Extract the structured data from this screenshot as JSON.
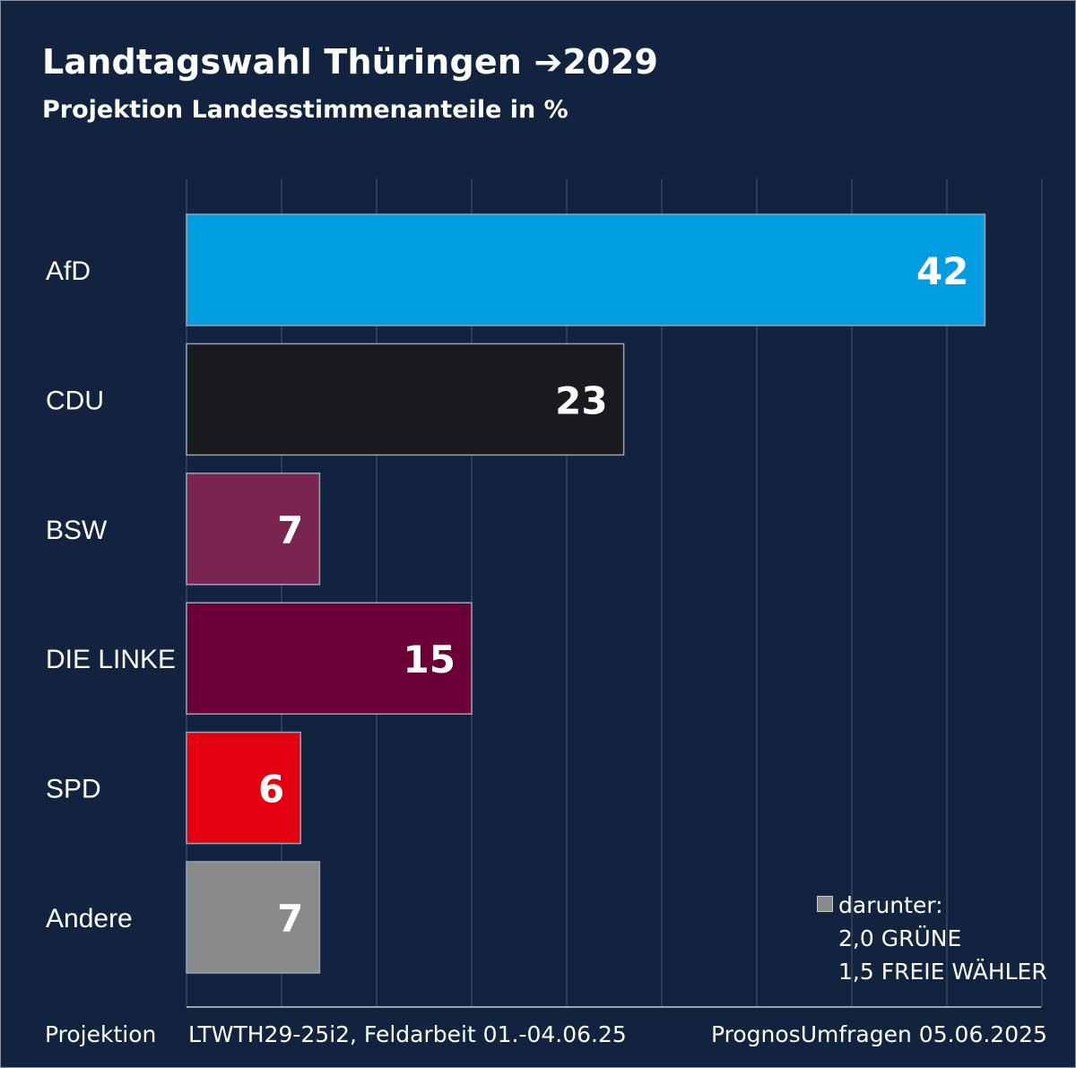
{
  "title": "Landtagswahl Thüringen ➔2029",
  "subtitle": "Projektion Landesstimmenanteile in %",
  "chart_data": {
    "type": "bar",
    "orientation": "horizontal",
    "categories": [
      "AfD",
      "CDU",
      "BSW",
      "DIE LINKE",
      "SPD",
      "Andere"
    ],
    "values": [
      42,
      23,
      7,
      15,
      6,
      7
    ],
    "colors": [
      "#009ee0",
      "#1a1a1f",
      "#7a2450",
      "#6b0036",
      "#e3000f",
      "#8a8a8a"
    ],
    "xlim": [
      0,
      45
    ],
    "grid_step": 5,
    "grid": true,
    "unit": "%"
  },
  "legend": {
    "heading": "darunter:",
    "items": [
      "2,0 GRÜNE",
      "1,5 FREIE WÄHLER"
    ]
  },
  "footer": {
    "left": "Projektion",
    "middle": "LTWTH29-25i2, Feldarbeit 01.-04.06.25",
    "right": "PrognosUmfragen 05.06.2025"
  }
}
